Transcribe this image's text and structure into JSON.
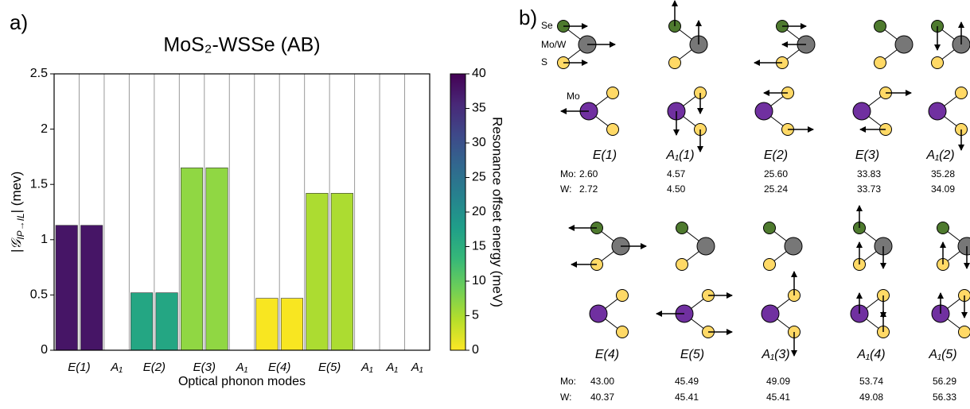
{
  "panel_labels": [
    "a)",
    "b)"
  ],
  "chart_data": {
    "type": "bar",
    "title": "MoS₂-WSSe (AB)",
    "ylabel": [
      "|𝒢",
      "IP→IL",
      "|  (mev)"
    ],
    "xlabel": "Optical phonon modes",
    "categories": [
      "E(1)",
      null,
      "A₁",
      "E(2)",
      null,
      "E(3)",
      null,
      "A₁",
      "E(4)",
      null,
      "E(5)",
      null,
      "A₁",
      "A₁",
      "A₁"
    ],
    "values": [
      1.13,
      1.13,
      0,
      0.52,
      0.52,
      1.65,
      1.65,
      0,
      0.47,
      0.47,
      1.42,
      1.42,
      0,
      0,
      0
    ],
    "colors": [
      "#461566",
      "#461566",
      null,
      "#24a683",
      "#24a683",
      "#90d743",
      "#90d743",
      null,
      "#f8e621",
      "#f8e621",
      "#acdc31",
      "#acdc31",
      null,
      null,
      null
    ],
    "ylim": [
      0,
      2.5
    ],
    "yticks": [
      0,
      0.5,
      1,
      1.5,
      2,
      2.5
    ],
    "colorbar": {
      "label": "Resonance offset energy (meV)",
      "lim": [
        0,
        40
      ],
      "ticks": [
        0,
        5,
        10,
        15,
        20,
        25,
        30,
        35,
        40
      ],
      "colormap": [
        "#fde725",
        "#b5de2b",
        "#6ece58",
        "#35b779",
        "#1f9e89",
        "#26828e",
        "#31688e",
        "#3e4989",
        "#482878",
        "#440154"
      ]
    }
  },
  "phonon_modes": {
    "atom_labels": {
      "se": "Se",
      "mow": "Mo/W",
      "s": "S",
      "mo": "Mo"
    },
    "blocks": [
      {
        "modes": [
          "E(1)",
          "A₁(1)",
          "E(2)",
          "E(3)",
          "A₁(2)"
        ],
        "rows": [
          {
            "label": "Mo:",
            "values": [
              "2.60",
              "4.57",
              "25.60",
              "33.83",
              "35.28"
            ]
          },
          {
            "label": "W:",
            "values": [
              "2.72",
              "4.50",
              "25.24",
              "33.73",
              "34.09"
            ]
          }
        ]
      },
      {
        "modes": [
          "E(4)",
          "E(5)",
          "A₁(3)",
          "A₁(4)",
          "A₁(5)"
        ],
        "rows": [
          {
            "label": "Mo:",
            "values": [
              "43.00",
              "45.49",
              "49.09",
              "53.74",
              "56.29"
            ]
          },
          {
            "label": "W:",
            "values": [
              "40.37",
              "45.41",
              "45.41",
              "49.08",
              "56.33"
            ]
          }
        ]
      }
    ]
  }
}
